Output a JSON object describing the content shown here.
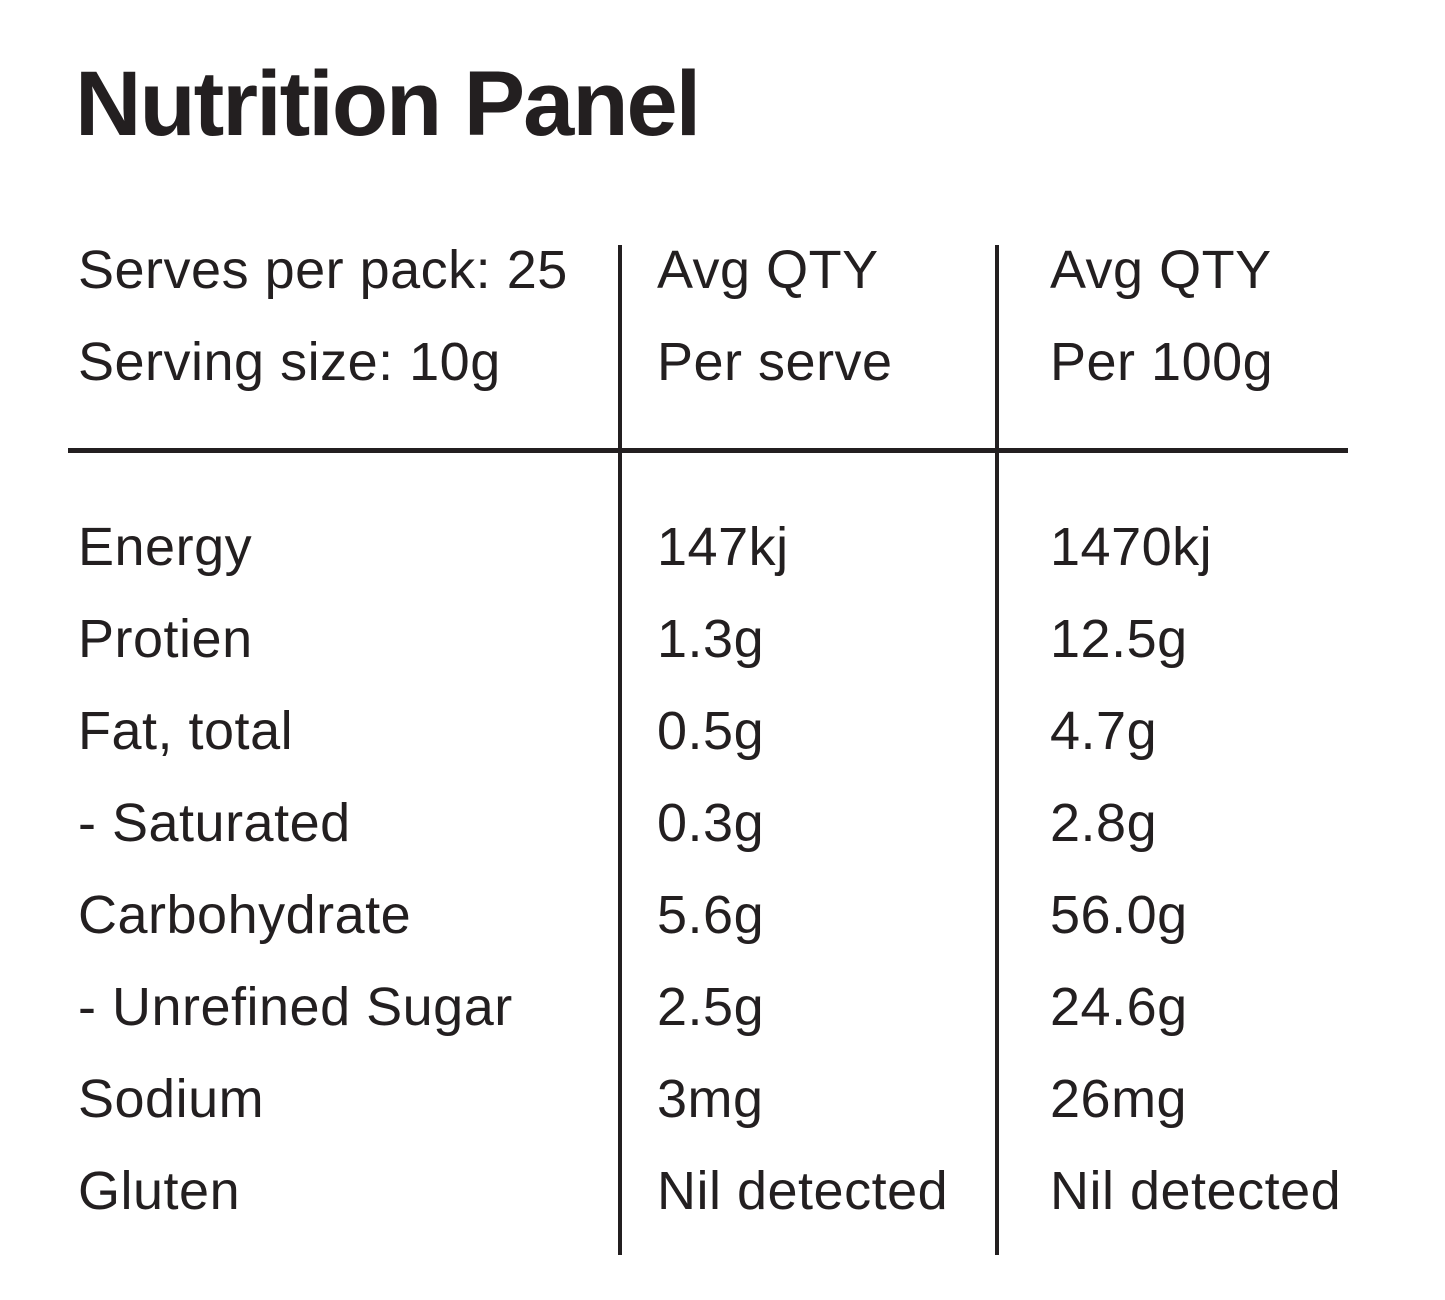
{
  "page": {
    "title": "Nutrition Panel",
    "background_color": "#ffffff",
    "text_color": "#231f20",
    "line_color": "#231f20"
  },
  "table": {
    "header": {
      "serves_per_pack": "Serves per pack: 25",
      "serving_size": "Serving size: 10g",
      "per_serve_col": {
        "line1": "Avg QTY",
        "line2": "Per serve"
      },
      "per_100g_col": {
        "line1": "Avg QTY",
        "line2": "Per 100g"
      }
    },
    "rows": [
      {
        "label": "Energy",
        "per_serve": "147kj",
        "per_100g": "1470kj"
      },
      {
        "label": "Protien",
        "per_serve": "1.3g",
        "per_100g": "12.5g"
      },
      {
        "label": "Fat, total",
        "per_serve": "0.5g",
        "per_100g": "4.7g"
      },
      {
        "label": "- Saturated",
        "per_serve": "0.3g",
        "per_100g": "2.8g"
      },
      {
        "label": "Carbohydrate",
        "per_serve": "5.6g",
        "per_100g": "56.0g"
      },
      {
        "label": "- Unrefined Sugar",
        "per_serve": "2.5g",
        "per_100g": "24.6g"
      },
      {
        "label": "Sodium",
        "per_serve": "3mg",
        "per_100g": "26mg"
      },
      {
        "label": "Gluten",
        "per_serve": "Nil detected",
        "per_100g": "Nil detected"
      }
    ]
  }
}
